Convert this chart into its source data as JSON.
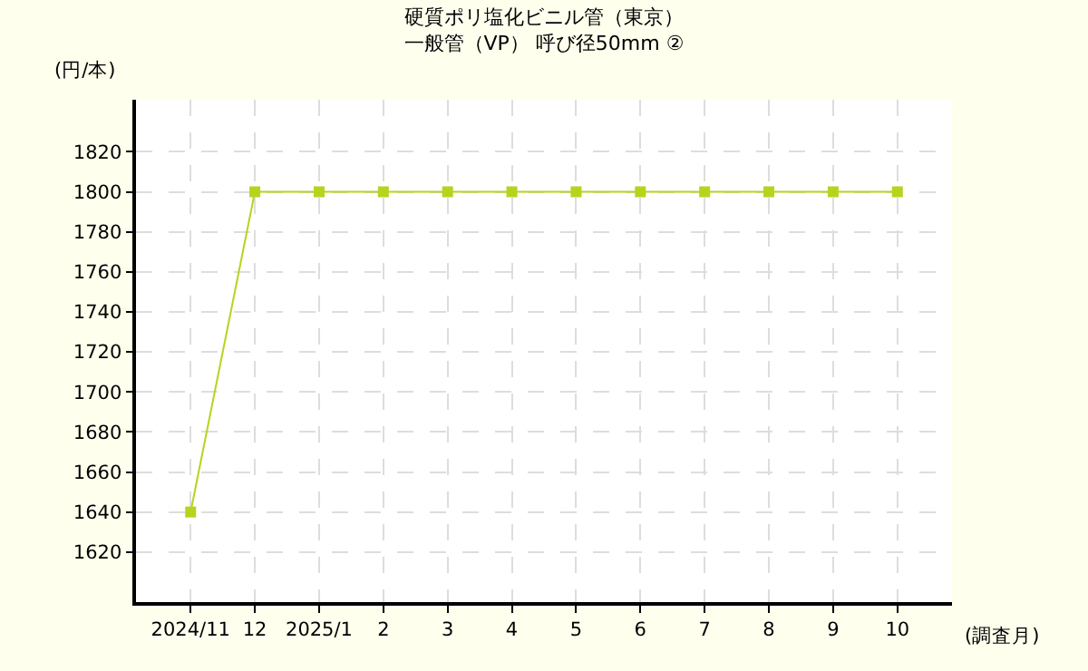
{
  "chart_data": {
    "type": "line",
    "title": "硬質ポリ塩化ビニル管（東京）",
    "subtitle": "一般管（VP） 呼び径50mm ②",
    "ylabel": "(円/本)",
    "xlabel": "(調査月)",
    "categories": [
      "2024/11",
      "12",
      "2025/1",
      "2",
      "3",
      "4",
      "5",
      "6",
      "7",
      "8",
      "9",
      "10"
    ],
    "series": [
      {
        "color": "#b5d41e",
        "values": [
          1640,
          1800,
          1800,
          1800,
          1800,
          1800,
          1800,
          1800,
          1800,
          1800,
          1800,
          1800
        ]
      }
    ],
    "ylim": [
      1595,
      1846
    ],
    "yticks": [
      1620,
      1640,
      1660,
      1680,
      1700,
      1720,
      1740,
      1760,
      1780,
      1800,
      1820
    ],
    "grid": true,
    "marker": "square",
    "line_style": "solid"
  }
}
